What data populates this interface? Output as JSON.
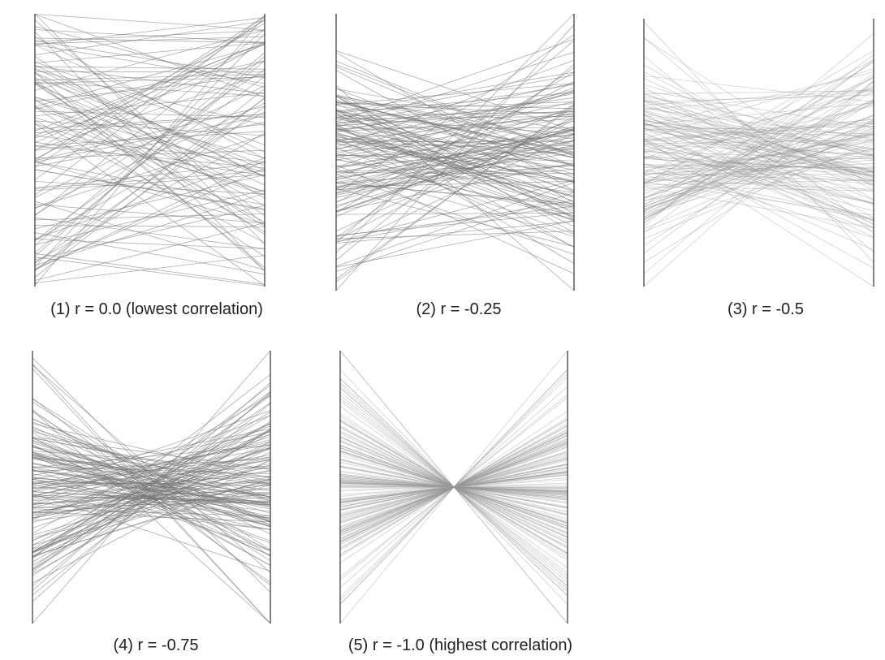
{
  "chart_data": [
    {
      "type": "parallel-coordinates",
      "caption": "(1) r = 0.0 (lowest correlation)",
      "r": 0.0,
      "axes": 2,
      "line_count": 120,
      "line_color": "#777777",
      "axis_color": "#333333"
    },
    {
      "type": "parallel-coordinates",
      "caption": "(2) r = -0.25",
      "r": -0.25,
      "axes": 2,
      "line_count": 150,
      "line_color": "#777777",
      "axis_color": "#333333"
    },
    {
      "type": "parallel-coordinates",
      "caption": "(3) r = -0.5",
      "r": -0.5,
      "axes": 2,
      "line_count": 150,
      "line_color": "#999999",
      "axis_color": "#333333"
    },
    {
      "type": "parallel-coordinates",
      "caption": "(4) r = -0.75",
      "r": -0.75,
      "axes": 2,
      "line_count": 150,
      "line_color": "#777777",
      "axis_color": "#333333"
    },
    {
      "type": "parallel-coordinates",
      "caption": "(5) r = -1.0 (highest correlation)",
      "r": -1.0,
      "axes": 2,
      "line_count": 150,
      "line_color": "#999999",
      "axis_color": "#333333"
    }
  ]
}
